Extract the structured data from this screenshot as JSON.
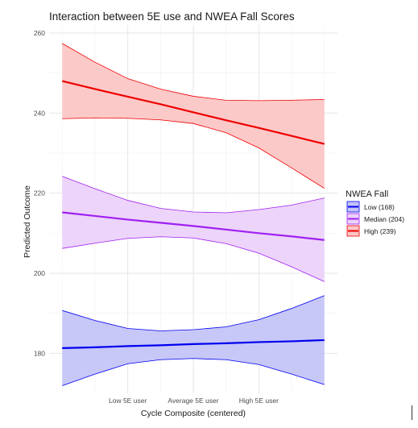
{
  "chart_data": {
    "type": "line",
    "title": "Interaction between 5E use and NWEA Fall Scores",
    "xlabel": "Cycle Composite (centered)",
    "ylabel": "Predicted Outcome",
    "x_ticks": [
      {
        "value": -1.0,
        "label": "Low 5E user"
      },
      {
        "value": 0.0,
        "label": "Average 5E user"
      },
      {
        "value": 1.0,
        "label": "High 5E user"
      }
    ],
    "x": [
      -2.0,
      -1.5,
      -1.0,
      -0.5,
      0.0,
      0.5,
      1.0,
      1.5,
      2.0
    ],
    "xlim": [
      -2.2,
      2.2
    ],
    "ylim": [
      170,
      262
    ],
    "y_ticks": [
      180,
      200,
      220,
      240,
      260
    ],
    "grid": true,
    "legend": {
      "title": "NWEA Fall",
      "position": "right"
    },
    "series": [
      {
        "name": "Low (168)",
        "color": "#0000ee",
        "fill": "#c4c4f8",
        "values": [
          181.3,
          181.5,
          181.8,
          182.0,
          182.3,
          182.5,
          182.8,
          183.0,
          183.3
        ],
        "lower": [
          171.9,
          174.8,
          177.4,
          178.4,
          178.7,
          178.4,
          177.2,
          174.8,
          172.2
        ],
        "upper": [
          190.7,
          188.2,
          186.2,
          185.6,
          185.9,
          186.6,
          188.4,
          191.2,
          194.4
        ]
      },
      {
        "name": "Median (204)",
        "color": "#a020f0",
        "fill": "#ecd2fb",
        "values": [
          215.2,
          214.3,
          213.4,
          212.6,
          211.8,
          210.9,
          210.0,
          209.2,
          208.3
        ],
        "lower": [
          206.2,
          207.5,
          208.7,
          209.1,
          208.8,
          207.4,
          205.0,
          201.6,
          197.9
        ],
        "upper": [
          224.2,
          221.1,
          218.2,
          216.2,
          215.3,
          215.1,
          215.9,
          217.0,
          218.8
        ]
      },
      {
        "name": "High (239)",
        "color": "#ee0000",
        "fill": "#fcc6c6",
        "values": [
          248.0,
          246.0,
          244.1,
          242.2,
          240.2,
          238.2,
          236.3,
          234.3,
          232.3
        ],
        "lower": [
          238.6,
          238.8,
          238.7,
          238.3,
          237.4,
          235.1,
          231.3,
          226.3,
          221.2
        ],
        "upper": [
          257.4,
          252.7,
          248.6,
          246.0,
          244.2,
          243.2,
          243.1,
          243.2,
          243.4
        ]
      }
    ]
  }
}
